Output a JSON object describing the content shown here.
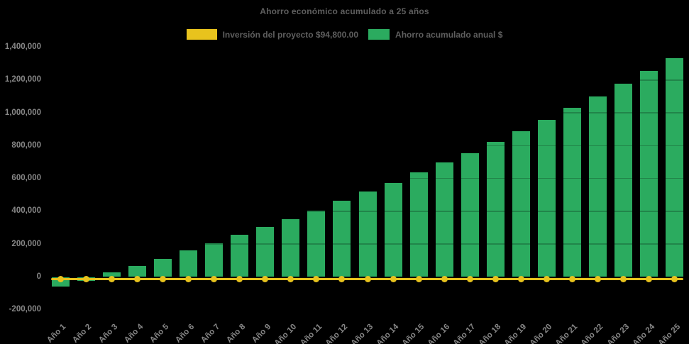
{
  "title": "Ahorro económico acumulado a 25 años",
  "legend": {
    "investment": {
      "label": "Inversión del proyecto $94,800.00",
      "color": "#E8C31D"
    },
    "savings": {
      "label": "Ahorro acumulado anual $",
      "color": "#2BAB5F"
    }
  },
  "colors": {
    "background": "#000000",
    "bar_green": "#2BAB5F",
    "line_yellow": "#E8C31D",
    "title_text": "#5f5f5f",
    "axis_text": "#878787"
  },
  "chart_data": {
    "type": "bar",
    "title": "Ahorro económico acumulado a 25 años",
    "xlabel": "",
    "ylabel": "",
    "ylim": [
      -200000,
      1400000
    ],
    "ytick_step": 200000,
    "grid": false,
    "legend_position": "top",
    "categories": [
      "Año 1",
      "Año 2",
      "Año 3",
      "Año 4",
      "Año 5",
      "Año 6",
      "Año 7",
      "Año 8",
      "Año 9",
      "Año 10",
      "Año 11",
      "Año 12",
      "Año 13",
      "Año 14",
      "Año 15",
      "Año 16",
      "Año 17",
      "Año 18",
      "Año 19",
      "Año 20",
      "Año 21",
      "Año 22",
      "Año 23",
      "Año 24",
      "Año 25"
    ],
    "yticks": [
      {
        "value": 1400000,
        "label": "1,400,000"
      },
      {
        "value": 1200000,
        "label": "1,200,000"
      },
      {
        "value": 1000000,
        "label": "1,000,000"
      },
      {
        "value": 800000,
        "label": "800,000"
      },
      {
        "value": 600000,
        "label": "600,000"
      },
      {
        "value": 400000,
        "label": "400,000"
      },
      {
        "value": 200000,
        "label": "200,000"
      },
      {
        "value": 0,
        "label": "0"
      },
      {
        "value": -200000,
        "label": "-200,000"
      }
    ],
    "series": [
      {
        "name": "Ahorro acumulado anual $",
        "type": "bar",
        "color": "#2BAB5F",
        "values": [
          -60000,
          -25000,
          28000,
          69000,
          112000,
          160000,
          204000,
          257000,
          304000,
          354000,
          406000,
          463000,
          520000,
          571000,
          636000,
          697000,
          755000,
          822000,
          890000,
          957000,
          1030000,
          1101000,
          1176000,
          1255000,
          1335000
        ]
      },
      {
        "name": "Inversión del proyecto $94,800.00",
        "type": "line",
        "color": "#E8C31D",
        "values": [
          0,
          0,
          0,
          0,
          0,
          0,
          0,
          0,
          0,
          0,
          0,
          0,
          0,
          0,
          0,
          0,
          0,
          0,
          0,
          0,
          0,
          0,
          0,
          0,
          0
        ]
      }
    ]
  }
}
